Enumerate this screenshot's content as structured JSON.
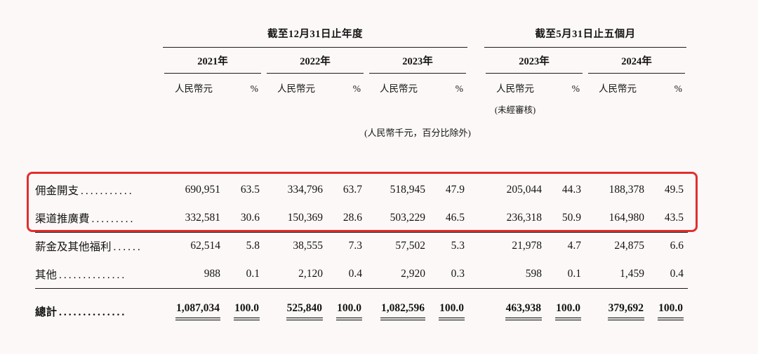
{
  "page": {
    "background": "#fdf8f8",
    "highlight_color": "#e12f2f",
    "highlight_rows": [
      0,
      1
    ]
  },
  "table": {
    "groups": [
      {
        "label": "截至12月31日止年度"
      },
      {
        "label": "截至5月31日止五個月"
      }
    ],
    "years": [
      "2021年",
      "2022年",
      "2023年",
      "2023年",
      "2024年"
    ],
    "col_rmb": "人民幣元",
    "col_pct": "%",
    "unaudited_note": "(未經審核)",
    "units_note": "(人民幣千元，百分比除外)",
    "rows": [
      {
        "label": "佣金開支",
        "leader": "...........",
        "values": [
          "690,951",
          "63.5",
          "334,796",
          "63.7",
          "518,945",
          "47.9",
          "205,044",
          "44.3",
          "188,378",
          "49.5"
        ]
      },
      {
        "label": "渠道推廣費",
        "leader": ".........",
        "values": [
          "332,581",
          "30.6",
          "150,369",
          "28.6",
          "503,229",
          "46.5",
          "236,318",
          "50.9",
          "164,980",
          "43.5"
        ]
      },
      {
        "label": "薪金及其他福利",
        "leader": "......",
        "values": [
          "62,514",
          "5.8",
          "38,555",
          "7.3",
          "57,502",
          "5.3",
          "21,978",
          "4.7",
          "24,875",
          "6.6"
        ]
      },
      {
        "label": "其他",
        "leader": "..............",
        "values": [
          "988",
          "0.1",
          "2,120",
          "0.4",
          "2,920",
          "0.3",
          "598",
          "0.1",
          "1,459",
          "0.4"
        ]
      }
    ],
    "total": {
      "label": "總計",
      "leader": "..............",
      "values": [
        "1,087,034",
        "100.0",
        "525,840",
        "100.0",
        "1,082,596",
        "100.0",
        "463,938",
        "100.0",
        "379,692",
        "100.0"
      ]
    }
  }
}
